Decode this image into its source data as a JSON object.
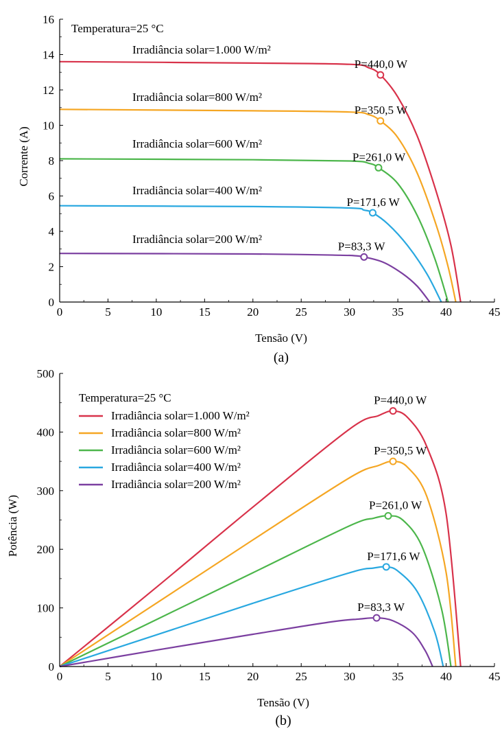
{
  "chart_data": [
    {
      "type": "line",
      "panel_label": "(a)",
      "xlabel": "Tensão (V)",
      "ylabel": "Corrente (A)",
      "xlim": [
        0,
        45
      ],
      "ylim": [
        0,
        16
      ],
      "xticks": [
        "0",
        "5",
        "10",
        "15",
        "20",
        "25",
        "30",
        "35",
        "40",
        "45"
      ],
      "yticks": [
        "0",
        "2",
        "4",
        "6",
        "8",
        "10",
        "12",
        "14",
        "16"
      ],
      "grid": false,
      "legend_position": "none",
      "temperature_label": "Temperatura=25 °C",
      "series": [
        {
          "color": "#d8324a",
          "inline_label": "Irradiância solar=1.000 W/m²",
          "points": [
            [
              0,
              13.6
            ],
            [
              20,
              13.52
            ],
            [
              30,
              13.45
            ],
            [
              32,
              13.25
            ],
            [
              33.2,
              12.85
            ],
            [
              35,
              11.6
            ],
            [
              37,
              9.4
            ],
            [
              39,
              6.2
            ],
            [
              40.5,
              3.2
            ],
            [
              41.5,
              0
            ]
          ],
          "mpp": {
            "x": 33.2,
            "y": 12.85,
            "label": "P=440,0 W"
          }
        },
        {
          "color": "#f5a623",
          "inline_label": "Irradiância solar=800 W/m²",
          "points": [
            [
              0,
              10.9
            ],
            [
              20,
              10.82
            ],
            [
              30,
              10.75
            ],
            [
              32,
              10.6
            ],
            [
              33.2,
              10.25
            ],
            [
              35,
              9.3
            ],
            [
              37,
              7.3
            ],
            [
              39,
              4.3
            ],
            [
              40.2,
              2.0
            ],
            [
              41,
              0
            ]
          ],
          "mpp": {
            "x": 33.2,
            "y": 10.25,
            "label": "P=350,5 W"
          }
        },
        {
          "color": "#4cb64b",
          "inline_label": "Irradiância solar=600 W/m²",
          "points": [
            [
              0,
              8.1
            ],
            [
              20,
              8.05
            ],
            [
              30,
              7.98
            ],
            [
              32,
              7.85
            ],
            [
              33,
              7.6
            ],
            [
              35,
              6.7
            ],
            [
              37,
              4.9
            ],
            [
              38.8,
              2.5
            ],
            [
              40.2,
              0
            ]
          ],
          "mpp": {
            "x": 33.0,
            "y": 7.6,
            "label": "P=261,0 W"
          }
        },
        {
          "color": "#29a8e0",
          "inline_label": "Irradiância solar=400 W/m²",
          "points": [
            [
              0,
              5.45
            ],
            [
              20,
              5.4
            ],
            [
              30,
              5.32
            ],
            [
              31.5,
              5.2
            ],
            [
              32.4,
              5.05
            ],
            [
              34,
              4.4
            ],
            [
              36,
              3.2
            ],
            [
              38,
              1.6
            ],
            [
              39.5,
              0
            ]
          ],
          "mpp": {
            "x": 32.4,
            "y": 5.05,
            "label": "P=171,6 W"
          }
        },
        {
          "color": "#7b3fa0",
          "inline_label": "Irradiância solar=200 W/m²",
          "points": [
            [
              0,
              2.75
            ],
            [
              20,
              2.72
            ],
            [
              29,
              2.65
            ],
            [
              30.5,
              2.62
            ],
            [
              31.5,
              2.55
            ],
            [
              33.5,
              2.25
            ],
            [
              35.5,
              1.6
            ],
            [
              37,
              0.9
            ],
            [
              38.3,
              0
            ]
          ],
          "mpp": {
            "x": 31.5,
            "y": 2.55,
            "label": "P=83,3 W"
          }
        }
      ]
    },
    {
      "type": "line",
      "panel_label": "(b)",
      "xlabel": "Tensão (V)",
      "ylabel": "Potência (W)",
      "xlim": [
        0,
        45
      ],
      "ylim": [
        0,
        500
      ],
      "xticks": [
        "0",
        "5",
        "10",
        "15",
        "20",
        "25",
        "30",
        "35",
        "40",
        "45"
      ],
      "yticks": [
        "0",
        "100",
        "200",
        "300",
        "400",
        "500"
      ],
      "grid": false,
      "legend_position": "top-left",
      "temperature_label": "Temperatura=25 °C",
      "series": [
        {
          "color": "#d8324a",
          "name": "Irradiância solar=1.000 W/m²",
          "points": [
            [
              0,
              0
            ],
            [
              10,
              135
            ],
            [
              20,
              272
            ],
            [
              30,
              405
            ],
            [
              33,
              428
            ],
            [
              34.5,
              436
            ],
            [
              36,
              425
            ],
            [
              38,
              375
            ],
            [
              40,
              260
            ],
            [
              41.5,
              0
            ]
          ],
          "mpp": {
            "x": 34.5,
            "y": 436,
            "label": "P=440,0 W"
          }
        },
        {
          "color": "#f5a623",
          "name": "Irradiância solar=800 W/m²",
          "points": [
            [
              0,
              0
            ],
            [
              10,
              108
            ],
            [
              20,
              216
            ],
            [
              30,
              322
            ],
            [
              33,
              343
            ],
            [
              34.5,
              350
            ],
            [
              36,
              340
            ],
            [
              38,
              290
            ],
            [
              40,
              160
            ],
            [
              41,
              0
            ]
          ],
          "mpp": {
            "x": 34.5,
            "y": 350,
            "label": "P=350,5 W"
          }
        },
        {
          "color": "#4cb64b",
          "name": "Irradiância solar=600 W/m²",
          "points": [
            [
              0,
              0
            ],
            [
              10,
              80
            ],
            [
              20,
              160
            ],
            [
              30,
              240
            ],
            [
              32.5,
              253
            ],
            [
              34,
              257
            ],
            [
              35.5,
              250
            ],
            [
              37.5,
              205
            ],
            [
              39.5,
              100
            ],
            [
              40.5,
              0
            ]
          ],
          "mpp": {
            "x": 34.0,
            "y": 257,
            "label": "P=261,0 W"
          }
        },
        {
          "color": "#29a8e0",
          "name": "Irradiância solar=400 W/m²",
          "points": [
            [
              0,
              0
            ],
            [
              10,
              54
            ],
            [
              20,
              108
            ],
            [
              30,
              160
            ],
            [
              32.5,
              168
            ],
            [
              33.8,
              170
            ],
            [
              35,
              163
            ],
            [
              37,
              128
            ],
            [
              38.8,
              60
            ],
            [
              39.7,
              0
            ]
          ],
          "mpp": {
            "x": 33.8,
            "y": 170,
            "label": "P=171,6 W"
          }
        },
        {
          "color": "#7b3fa0",
          "name": "Irradiância solar=200 W/m²",
          "points": [
            [
              0,
              0
            ],
            [
              10,
              28
            ],
            [
              20,
              55
            ],
            [
              28,
              76
            ],
            [
              31,
              81
            ],
            [
              32.8,
              83
            ],
            [
              34.5,
              78
            ],
            [
              36.5,
              58
            ],
            [
              37.8,
              28
            ],
            [
              38.6,
              0
            ]
          ],
          "mpp": {
            "x": 32.8,
            "y": 83,
            "label": "P=83,3 W"
          }
        }
      ]
    }
  ]
}
